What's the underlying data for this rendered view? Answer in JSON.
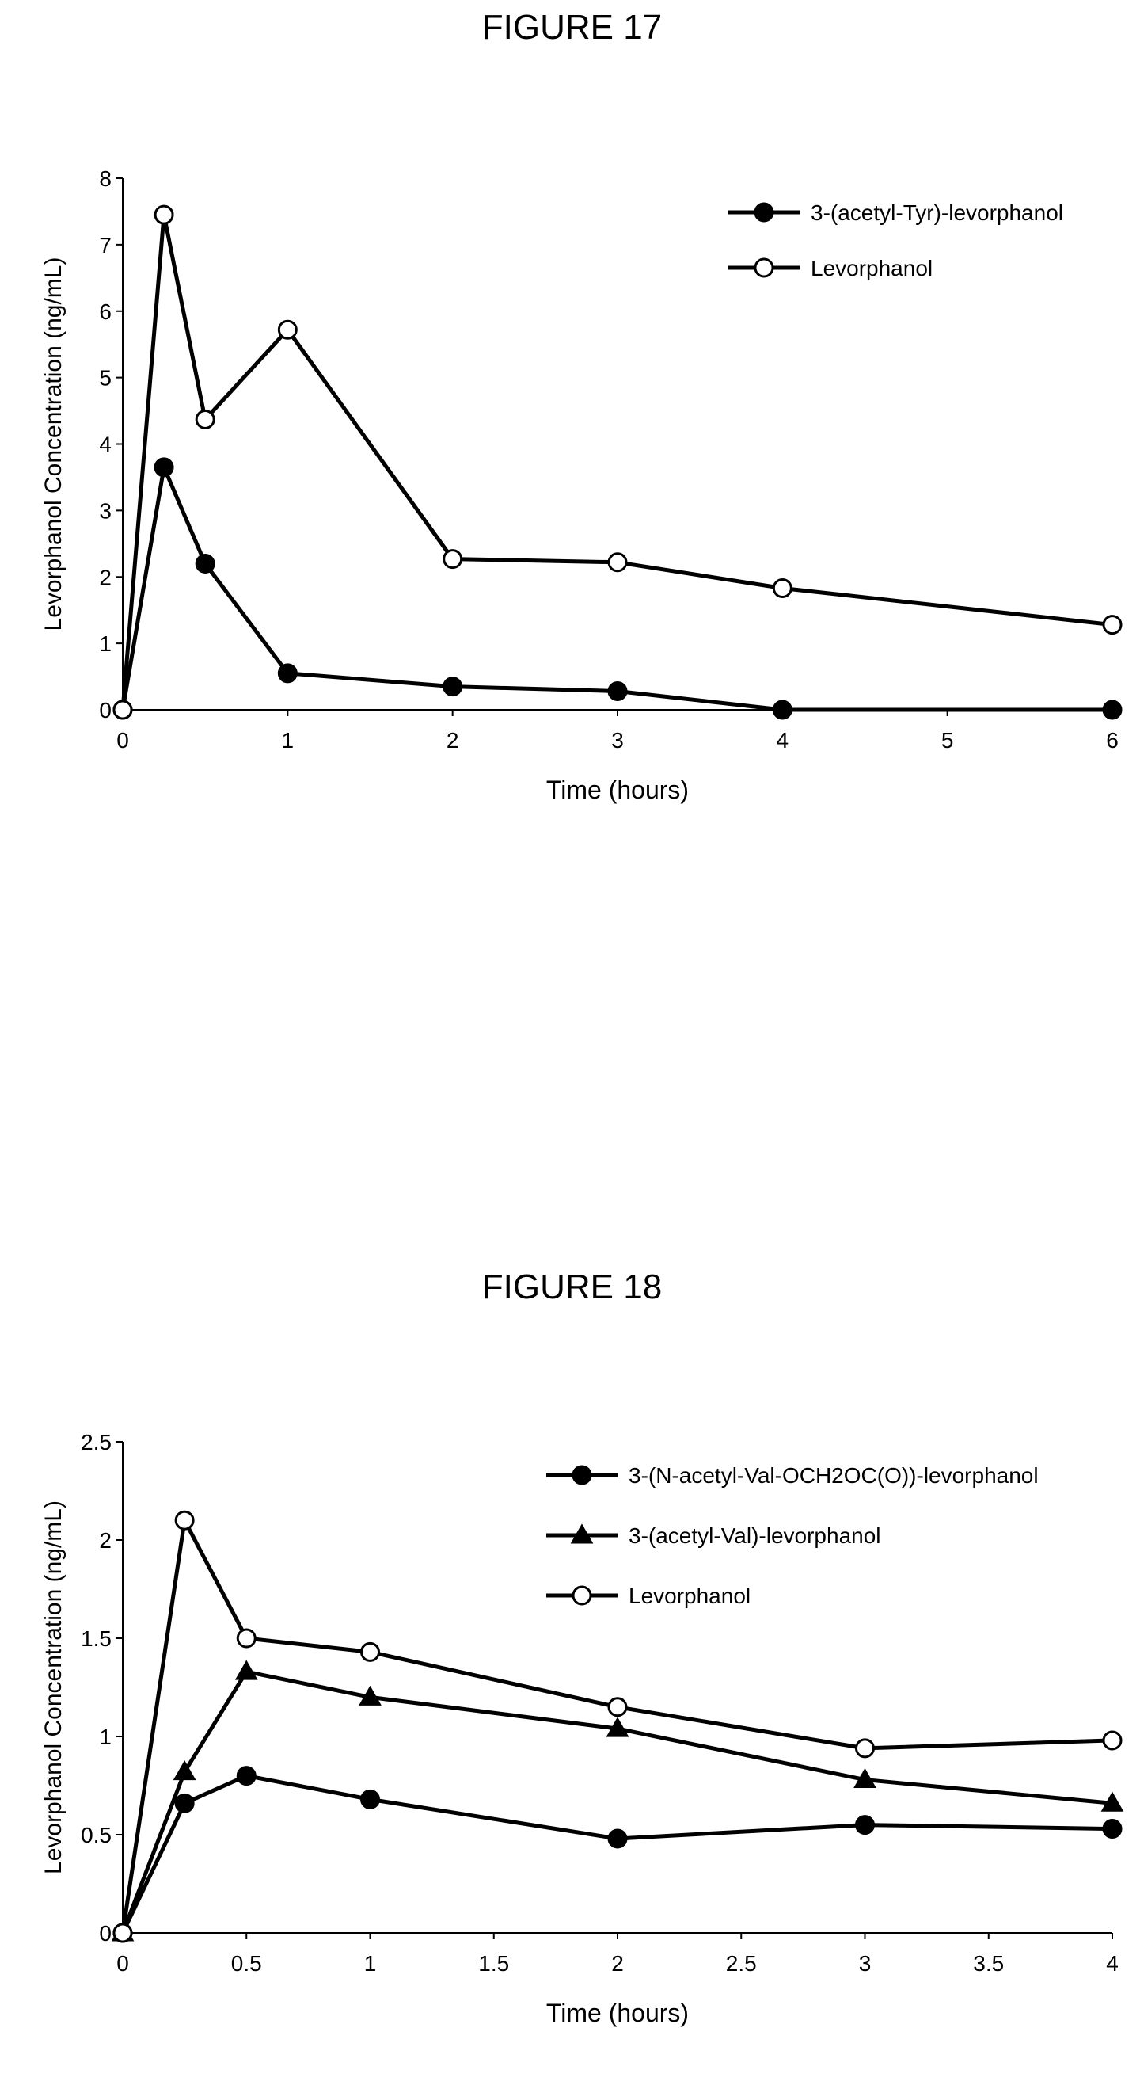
{
  "figures": [
    {
      "title": "FIGURE 17"
    },
    {
      "title": "FIGURE 18"
    }
  ],
  "chart_data": [
    {
      "type": "line",
      "title": "",
      "xlabel": "Time (hours)",
      "ylabel": "Levorphanol Concentration (ng/mL)",
      "xlim": [
        0,
        6
      ],
      "ylim": [
        0,
        8
      ],
      "xticks": [
        "0",
        "1",
        "2",
        "3",
        "4",
        "5",
        "6"
      ],
      "yticks": [
        "0",
        "1",
        "2",
        "3",
        "4",
        "5",
        "6",
        "7",
        "8"
      ],
      "grid": false,
      "legend": "top-right",
      "series": [
        {
          "name": "3-(acetyl-Tyr)-levorphanol",
          "marker": "filled-circle",
          "x": [
            0,
            0.25,
            0.5,
            1,
            2,
            3,
            4,
            6
          ],
          "y": [
            0,
            3.65,
            2.2,
            0.55,
            0.35,
            0.28,
            0,
            0
          ]
        },
        {
          "name": "Levorphanol",
          "marker": "open-circle",
          "x": [
            0,
            0.25,
            0.5,
            1,
            2,
            3,
            4,
            6
          ],
          "y": [
            0,
            7.45,
            4.37,
            5.72,
            2.27,
            2.22,
            1.83,
            1.28
          ]
        }
      ]
    },
    {
      "type": "line",
      "title": "",
      "xlabel": "Time (hours)",
      "ylabel": "Levorphanol Concentration (ng/mL)",
      "xlim": [
        0,
        4
      ],
      "ylim": [
        0,
        2.5
      ],
      "xticks": [
        "0",
        "0.5",
        "1",
        "1.5",
        "2",
        "2.5",
        "3",
        "3.5",
        "4"
      ],
      "yticks": [
        "0",
        "0.5",
        "1",
        "1.5",
        "2",
        "2.5"
      ],
      "grid": false,
      "legend": "top-right",
      "series": [
        {
          "name": "3-(N-acetyl-Val-OCH2OC(O))-levorphanol",
          "marker": "filled-circle",
          "x": [
            0,
            0.25,
            0.5,
            1,
            2,
            3,
            4
          ],
          "y": [
            0,
            0.66,
            0.8,
            0.68,
            0.48,
            0.55,
            0.53
          ]
        },
        {
          "name": "3-(acetyl-Val)-levorphanol",
          "marker": "filled-triangle",
          "x": [
            0,
            0.25,
            0.5,
            1,
            2,
            3,
            4
          ],
          "y": [
            0,
            0.82,
            1.33,
            1.2,
            1.04,
            0.78,
            0.66
          ]
        },
        {
          "name": "Levorphanol",
          "marker": "open-circle",
          "x": [
            0,
            0.25,
            0.5,
            1,
            2,
            3,
            4
          ],
          "y": [
            0,
            2.1,
            1.5,
            1.43,
            1.15,
            0.94,
            0.98
          ]
        }
      ]
    }
  ]
}
